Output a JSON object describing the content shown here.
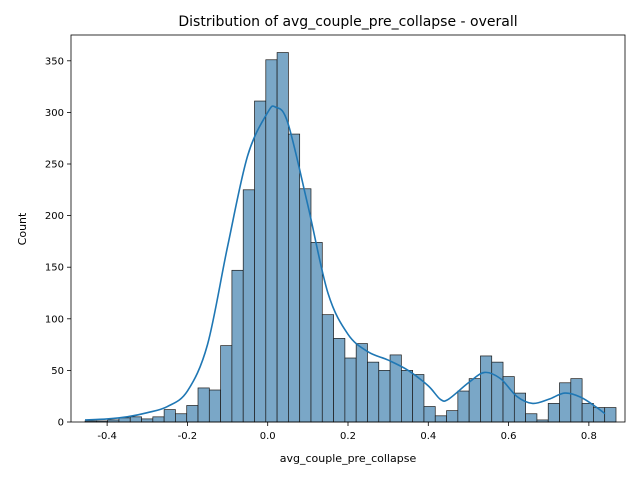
{
  "chart_data": {
    "type": "bar",
    "title": "Distribution of avg_couple_pre_collapse - overall",
    "xlabel": "avg_couple_pre_collapse",
    "ylabel": "Count",
    "xlim": [
      -0.49,
      0.89
    ],
    "ylim": [
      0,
      375
    ],
    "x_ticks": [
      "-0.4",
      "-0.2",
      "0.0",
      "0.2",
      "0.4",
      "0.6",
      "0.8"
    ],
    "x_tick_values": [
      -0.4,
      -0.2,
      0.0,
      0.2,
      0.4,
      0.6,
      0.8
    ],
    "y_ticks": [
      "0",
      "50",
      "100",
      "150",
      "200",
      "250",
      "300",
      "350"
    ],
    "y_tick_values": [
      0,
      50,
      100,
      150,
      200,
      250,
      300,
      350
    ],
    "bin_start": -0.455,
    "bin_width": 0.02814,
    "values": [
      1,
      1,
      2,
      4,
      5,
      3,
      5,
      12,
      8,
      16,
      33,
      31,
      74,
      147,
      225,
      311,
      351,
      358,
      279,
      226,
      174,
      104,
      81,
      62,
      76,
      58,
      50,
      65,
      50,
      46,
      15,
      6,
      11,
      30,
      42,
      64,
      58,
      44,
      28,
      8,
      2,
      18,
      38,
      42,
      18,
      14,
      14
    ],
    "kde": {
      "x": [
        -0.455,
        -0.4,
        -0.35,
        -0.3,
        -0.25,
        -0.2,
        -0.15,
        -0.1,
        -0.05,
        0.0,
        0.02,
        0.05,
        0.1,
        0.15,
        0.2,
        0.25,
        0.3,
        0.35,
        0.4,
        0.43,
        0.45,
        0.5,
        0.54,
        0.58,
        0.62,
        0.66,
        0.7,
        0.74,
        0.78,
        0.82,
        0.84
      ],
      "y": [
        2,
        3,
        5,
        9,
        15,
        30,
        75,
        170,
        258,
        300,
        305,
        290,
        210,
        125,
        85,
        68,
        60,
        50,
        35,
        22,
        22,
        38,
        48,
        42,
        25,
        18,
        22,
        28,
        24,
        14,
        8
      ]
    },
    "bar_fill": "#7aa7c7",
    "bar_edge": "#1a1a1a",
    "line_color": "#1f77b4",
    "grid": false,
    "legend": "none"
  }
}
